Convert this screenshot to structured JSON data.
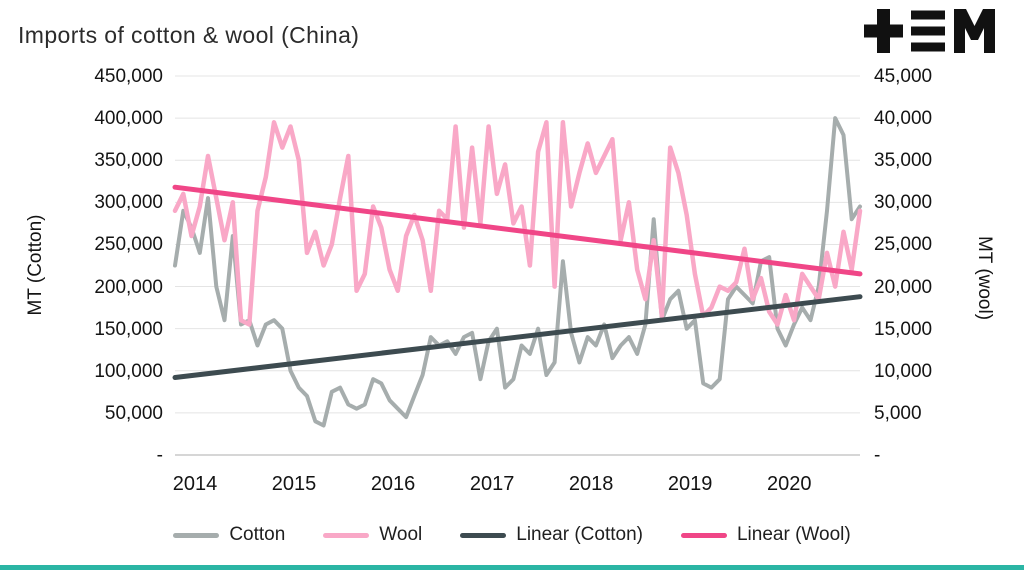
{
  "title": "Imports of cotton & wool (China)",
  "logo": {
    "alt": "tem logo",
    "color": "#111111"
  },
  "accent_color": "#2bb5a4",
  "chart_data": {
    "type": "line",
    "title": "Imports of cotton & wool (China)",
    "x_unit": "month",
    "x_range": [
      "2014-01",
      "2020-12"
    ],
    "x_tick_labels": [
      "2014",
      "2015",
      "2016",
      "2017",
      "2018",
      "2019",
      "2020"
    ],
    "grid": "horizontal",
    "legend_position": "bottom",
    "left_axis": {
      "label": "MT (Cotton)",
      "min": 0,
      "max": 450000,
      "step": 50000,
      "tick_labels": [
        "450,000",
        "400,000",
        "350,000",
        "300,000",
        "250,000",
        "200,000",
        "150,000",
        "100,000",
        "50,000",
        "-"
      ]
    },
    "right_axis": {
      "label": "MT (wool)",
      "min": 0,
      "max": 45000,
      "step": 5000,
      "tick_labels": [
        "45,000",
        "40,000",
        "35,000",
        "30,000",
        "25,000",
        "20,000",
        "15,000",
        "10,000",
        "5,000",
        "-"
      ]
    },
    "series": [
      {
        "name": "Cotton",
        "axis": "left",
        "color": "#a6adad",
        "width": 4,
        "trend": false,
        "values": [
          225000,
          290000,
          270000,
          240000,
          305000,
          200000,
          160000,
          260000,
          155000,
          160000,
          130000,
          155000,
          160000,
          150000,
          100000,
          80000,
          70000,
          40000,
          35000,
          75000,
          80000,
          60000,
          55000,
          60000,
          90000,
          85000,
          65000,
          55000,
          45000,
          70000,
          95000,
          140000,
          130000,
          135000,
          120000,
          140000,
          145000,
          90000,
          135000,
          150000,
          80000,
          90000,
          130000,
          120000,
          150000,
          95000,
          110000,
          230000,
          145000,
          110000,
          140000,
          130000,
          155000,
          115000,
          130000,
          140000,
          120000,
          155000,
          280000,
          160000,
          185000,
          195000,
          150000,
          160000,
          85000,
          80000,
          90000,
          185000,
          200000,
          190000,
          180000,
          230000,
          235000,
          150000,
          130000,
          155000,
          175000,
          160000,
          200000,
          290000,
          400000,
          380000,
          280000,
          295000
        ]
      },
      {
        "name": "Wool",
        "axis": "right",
        "color": "#f9a8c7",
        "width": 4.5,
        "trend": false,
        "values": [
          29000,
          31000,
          26000,
          29500,
          35500,
          30500,
          25500,
          30000,
          16000,
          15500,
          29000,
          33000,
          39500,
          36500,
          39000,
          35000,
          24000,
          26500,
          22500,
          25000,
          30500,
          35500,
          19500,
          21500,
          29500,
          27000,
          22000,
          19500,
          26000,
          28500,
          25500,
          19500,
          29000,
          28000,
          39000,
          27000,
          36500,
          27500,
          39000,
          31000,
          34500,
          27500,
          29500,
          22500,
          36000,
          39500,
          20000,
          39500,
          29500,
          33500,
          37000,
          33500,
          35500,
          37500,
          25500,
          30000,
          22000,
          18500,
          25500,
          16500,
          36500,
          33500,
          28500,
          21500,
          16500,
          17500,
          20000,
          19500,
          20500,
          24500,
          18500,
          21000,
          17000,
          15500,
          19000,
          16000,
          21500,
          20000,
          18500,
          24000,
          20000,
          26500,
          22000,
          29000
        ]
      },
      {
        "name": "Linear (Cotton)",
        "axis": "left",
        "color": "#3d4b50",
        "width": 5,
        "trend": true,
        "values": [
          92000,
          188000
        ]
      },
      {
        "name": "Linear (Wool)",
        "axis": "right",
        "color": "#f04687",
        "width": 5,
        "trend": true,
        "values": [
          31800,
          21500
        ]
      }
    ],
    "legend": [
      "Cotton",
      "Wool",
      "Linear (Cotton)",
      "Linear (Wool)"
    ]
  }
}
